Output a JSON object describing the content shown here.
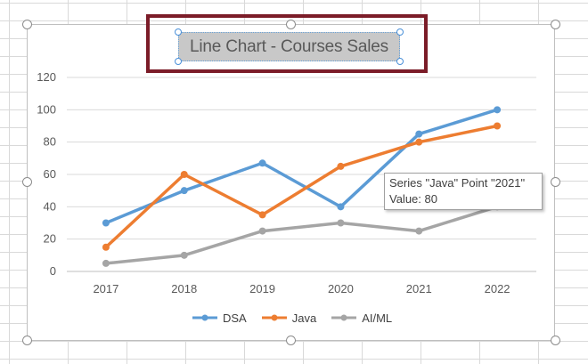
{
  "chart_data": {
    "type": "line",
    "title": "Line Chart - Courses Sales",
    "categories": [
      "2017",
      "2018",
      "2019",
      "2020",
      "2021",
      "2022"
    ],
    "ylim": [
      0,
      120
    ],
    "yticks": [
      "0",
      "20",
      "40",
      "60",
      "80",
      "100",
      "120"
    ],
    "grid": true,
    "legend_position": "bottom",
    "series": [
      {
        "name": "DSA",
        "color": "#5b9bd5",
        "values": [
          30,
          50,
          67,
          40,
          85,
          100
        ]
      },
      {
        "name": "Java",
        "color": "#ed7d31",
        "values": [
          15,
          60,
          35,
          65,
          80,
          90
        ]
      },
      {
        "name": "AI/ML",
        "color": "#a5a5a5",
        "values": [
          5,
          10,
          25,
          30,
          25,
          40
        ]
      }
    ]
  },
  "tooltip": {
    "line1": "Series \"Java\" Point \"2021\"",
    "line2": "Value: 80"
  }
}
